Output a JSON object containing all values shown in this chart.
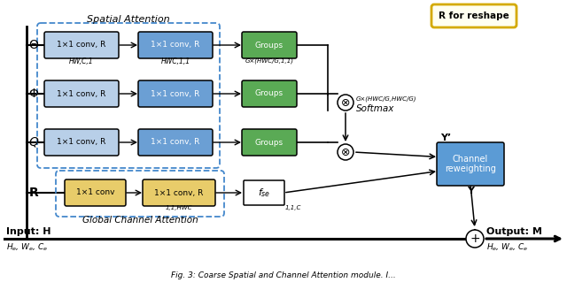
{
  "background": "#ffffff",
  "spatial_attention_label": "Spatial Attention",
  "global_channel_label": "Global Channel Attention",
  "reshape_label": "R for reshape",
  "light_blue": "#b8cfe8",
  "mid_blue": "#6b9fd4",
  "green": "#5aaa55",
  "yellow": "#e8cc6a",
  "channel_blue": "#5b9bd5",
  "dashed_color": "#4488cc",
  "reshape_border": "#d4aa00",
  "reshape_bg": "#fffff0",
  "row_symbols": [
    "Θ",
    "Φ",
    "Q",
    "R"
  ],
  "row1_labels": [
    "1×1 conv, R",
    "1×1 conv, R",
    "1×1 conv, R"
  ],
  "row2_labels": [
    "1×1 conv, R",
    "1×1 conv, R",
    "1×1 conv, R"
  ],
  "group_labels": [
    "Groups",
    "Groups",
    "Groups"
  ],
  "sub1": [
    "HW,C,1",
    "",
    ""
  ],
  "sub2": [
    "HWC,1,1",
    "",
    ""
  ],
  "sub3_top": "G×(HWC/G,1,1)",
  "chan_box1": "1×1 conv",
  "chan_box2": "1×1 conv, R",
  "chan_sub2": "1,1,HWC",
  "fse_label": "f_se",
  "fse_sub": "1,1,C",
  "softmax_label": "Softmax",
  "cross_label": "G×(HWC/G,HWC/G)",
  "channel_rw": "Channel\nreweighting",
  "y_prime": "Y’",
  "y_label": "Y",
  "input_label": "Input: H",
  "input_sub": "H_e, W_e, C_e",
  "output_label": "Output: M",
  "output_sub": "H_e, W_e, C_e"
}
